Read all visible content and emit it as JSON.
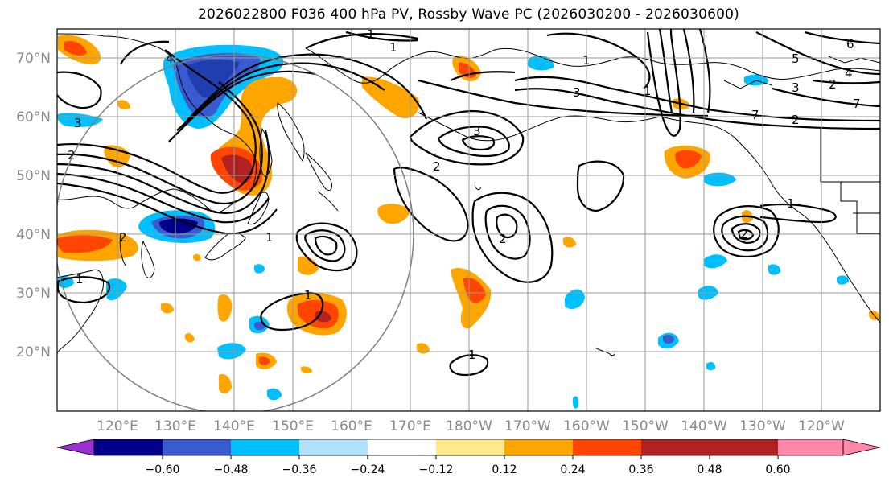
{
  "title": "2026022800 F036 400 hPa PV, Rossby Wave PC (2026030200 - 2026030600)",
  "lat_labels": [
    "70°N",
    "60°N",
    "50°N",
    "40°N",
    "30°N",
    "20°N"
  ],
  "lon_labels": [
    "120°E",
    "130°E",
    "140°E",
    "150°E",
    "160°E",
    "170°E",
    "180°W",
    "170°W",
    "160°W",
    "150°W",
    "140°W",
    "130°W",
    "120°W"
  ],
  "colorbar": {
    "ticks": [
      "−0.60",
      "−0.48",
      "−0.36",
      "−0.24",
      "−0.12",
      "0.12",
      "0.24",
      "0.36",
      "0.48",
      "0.60"
    ],
    "colors": [
      "#9b30d0",
      "#00008b",
      "#3a5bd0",
      "#00bfff",
      "#b0e2ff",
      "#ffffff",
      "#ffe98a",
      "#ffa500",
      "#ff4500",
      "#b22222",
      "#ff88aa"
    ]
  },
  "contour_labels": [
    "1",
    "1",
    "1",
    "1",
    "1",
    "1",
    "1",
    "1",
    "2",
    "2",
    "2",
    "2",
    "2",
    "2",
    "3",
    "3",
    "3",
    "3",
    "4",
    "4",
    "5",
    "6",
    "7",
    "7",
    "1",
    "2"
  ]
}
